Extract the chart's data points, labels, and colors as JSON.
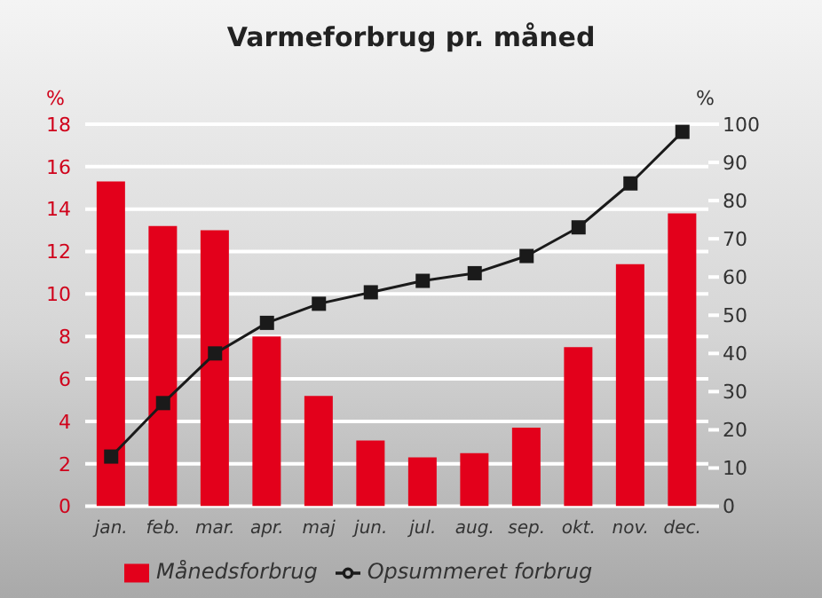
{
  "chart_data": {
    "type": "bar",
    "title": "Varmeforbrug pr. måned",
    "ylabel": "%",
    "y2label": "%",
    "categories": [
      "jan.",
      "feb.",
      "mar.",
      "apr.",
      "maj",
      "jun.",
      "jul.",
      "aug.",
      "sep.",
      "okt.",
      "nov.",
      "dec."
    ],
    "series": [
      {
        "name": "Månedsforbrug",
        "color": "#e3001b",
        "values": [
          15.3,
          13.2,
          13.0,
          8.0,
          5.2,
          3.1,
          2.3,
          2.5,
          3.7,
          7.5,
          11.4,
          13.8
        ]
      },
      {
        "name": "Opsummeret forbrug",
        "type": "line",
        "axis": "y2",
        "color": "#1a1a1a",
        "marker": "square",
        "values": [
          13,
          27,
          40,
          48,
          53,
          56,
          59,
          61,
          65.5,
          73,
          84.5,
          98
        ]
      }
    ],
    "ylim": [
      0,
      18
    ],
    "yticks": [
      0,
      2,
      4,
      6,
      8,
      10,
      12,
      14,
      16,
      18
    ],
    "y2lim": [
      0,
      100
    ],
    "y2ticks": [
      0,
      10,
      20,
      30,
      40,
      50,
      60,
      70,
      80,
      90,
      100
    ],
    "grid": "y",
    "legend": "bottom"
  }
}
